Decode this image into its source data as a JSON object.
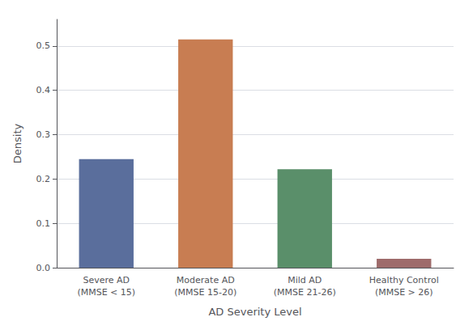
{
  "chart_data": {
    "type": "bar",
    "categories": [
      "Severe AD\n(MMSE < 15)",
      "Moderate AD\n(MMSE 15-20)",
      "Mild AD\n(MMSE 21-26)",
      "Healthy Control\n(MMSE > 26)"
    ],
    "values": [
      0.245,
      0.515,
      0.222,
      0.02
    ],
    "colors": [
      "#5a6e9c",
      "#c87d52",
      "#5a8f6a",
      "#9e6b6b"
    ],
    "xlabel": "AD Severity Level",
    "ylabel": "Density",
    "ylim": [
      0,
      0.56
    ],
    "yticks": [
      {
        "value": 0,
        "label": "0.0"
      },
      0.1,
      0.2,
      0.3,
      0.4,
      0.5
    ],
    "grid": true
  }
}
